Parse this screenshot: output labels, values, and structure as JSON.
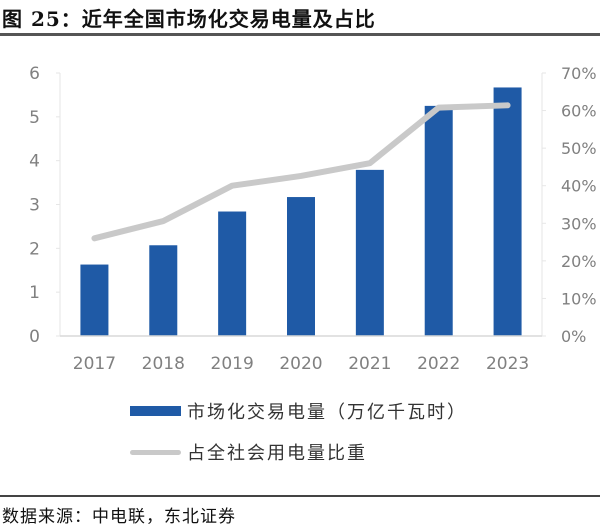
{
  "header": {
    "title": "图 25：近年全国市场化交易电量及占比"
  },
  "footer": {
    "source": "数据来源：中电联，东北证券"
  },
  "legend": {
    "bar_label": "市场化交易电量（万亿千瓦时）",
    "line_label": "占全社会用电量比重"
  },
  "colors": {
    "bar": "#1f5aa6",
    "line": "#c9c9c9",
    "axis_text": "#808080"
  },
  "chart_data": {
    "type": "bar+line",
    "title": "近年全国市场化交易电量及占比",
    "categories": [
      "2017",
      "2018",
      "2019",
      "2020",
      "2021",
      "2022",
      "2023"
    ],
    "series": [
      {
        "name": "市场化交易电量（万亿千瓦时）",
        "type": "bar",
        "axis": "left",
        "values": [
          1.63,
          2.07,
          2.84,
          3.17,
          3.79,
          5.25,
          5.67
        ]
      },
      {
        "name": "占全社会用电量比重",
        "type": "line",
        "axis": "right",
        "values": [
          26.0,
          30.6,
          40.0,
          42.6,
          46.0,
          60.8,
          61.4
        ]
      }
    ],
    "left_axis": {
      "ylim": [
        0,
        6
      ],
      "ticks": [
        "0",
        "1",
        "2",
        "3",
        "4",
        "5",
        "6"
      ]
    },
    "right_axis": {
      "ylim": [
        0,
        70
      ],
      "ticks": [
        "0%",
        "10%",
        "20%",
        "30%",
        "40%",
        "50%",
        "60%",
        "70%"
      ]
    },
    "xlabel": "",
    "ylabel": "",
    "grid": false,
    "legend_position": "bottom"
  }
}
